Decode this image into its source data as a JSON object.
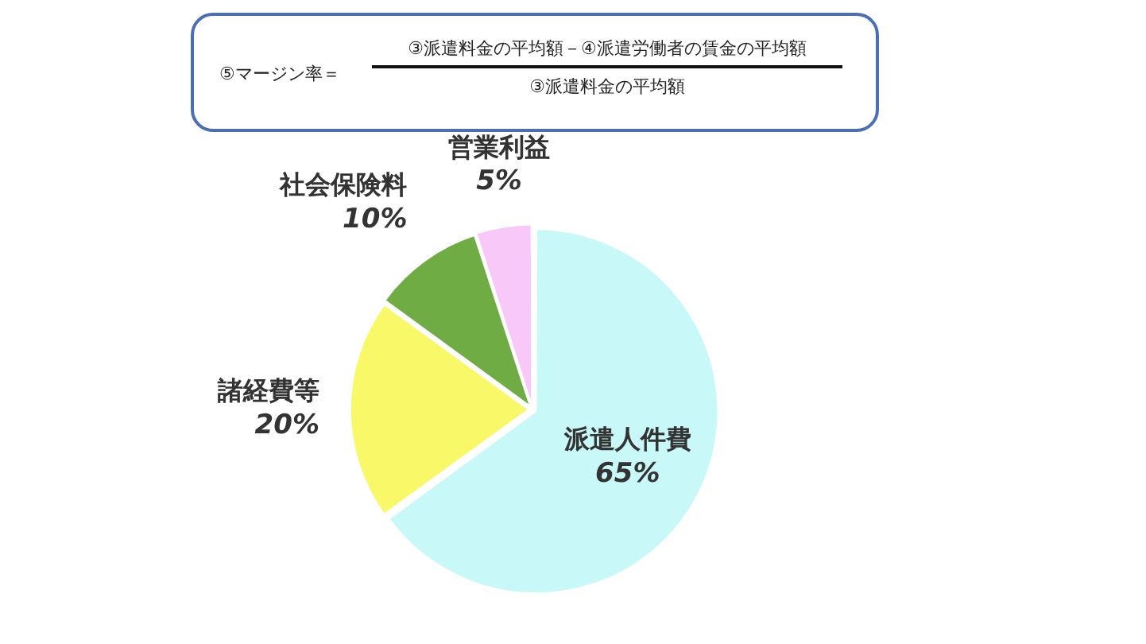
{
  "chart_data": {
    "type": "pie",
    "categories": [
      "派遣人件費",
      "諸経費等",
      "社会保険料",
      "営業利益"
    ],
    "values": [
      65,
      20,
      10,
      5
    ],
    "colors": [
      "#c8f8f8",
      "#f8f868",
      "#70ac44",
      "#f8c8f8"
    ],
    "value_labels": [
      "65%",
      "20%",
      "10%",
      "5%"
    ],
    "legend": false,
    "annotations": [
      "⑤マージン率＝",
      "③派遣料金の平均額－④派遣労働者の賃金の平均額",
      "③派遣料金の平均額"
    ]
  }
}
